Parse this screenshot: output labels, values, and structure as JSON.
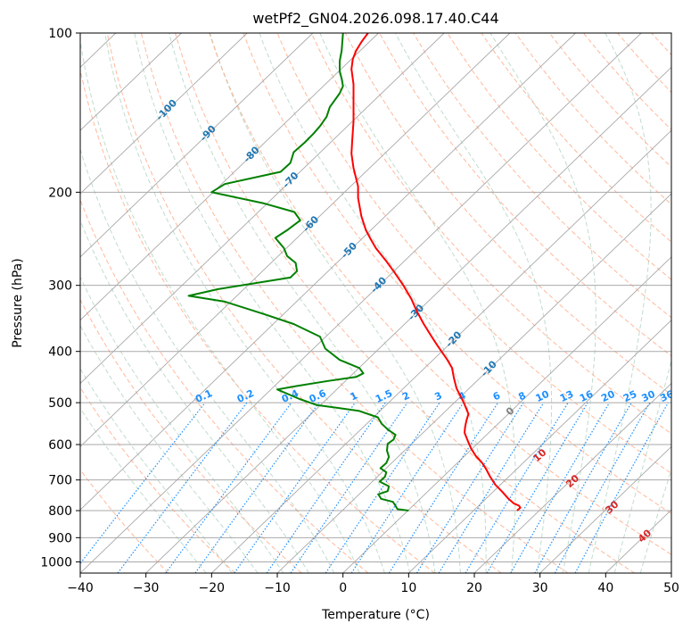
{
  "chart_data": {
    "type": "line",
    "title": "wetPf2_GN04.2026.098.17.40.C44",
    "xlabel": "Temperature (°C)",
    "ylabel": "Pressure (hPa)",
    "xlim": [
      -40,
      50
    ],
    "ylim": [
      1050,
      100
    ],
    "y_scale": "log",
    "x_ticks": [
      -40,
      -30,
      -20,
      -10,
      0,
      10,
      20,
      30,
      40,
      50
    ],
    "y_ticks": [
      100,
      200,
      300,
      400,
      500,
      600,
      700,
      800,
      900,
      1000
    ],
    "grid": true,
    "colors": {
      "temperature": "#ff0000",
      "dewpoint": "#008000",
      "isotherm": "#a9a9a9",
      "dry_adiabat": "#ffa07a",
      "moist_adiabat": "#2e8b57",
      "mixing_ratio": "#1e90ff",
      "dry_adiabat_label": "#d62728",
      "isotherm_label": "#1f77b4"
    },
    "series": [
      {
        "key": "temperature",
        "points": [
          [
            26.5,
            800
          ],
          [
            27.0,
            790
          ],
          [
            26.8,
            783
          ],
          [
            26.0,
            775
          ],
          [
            25.2,
            760
          ],
          [
            24.3,
            738
          ],
          [
            23.2,
            715
          ],
          [
            22.4,
            690
          ],
          [
            21.8,
            668
          ],
          [
            21.2,
            650
          ],
          [
            20.2,
            630
          ],
          [
            19.5,
            610
          ],
          [
            19.0,
            590
          ],
          [
            18.5,
            570
          ],
          [
            18.6,
            555
          ],
          [
            18.8,
            540
          ],
          [
            19.1,
            525
          ],
          [
            18.4,
            500
          ],
          [
            17.3,
            470
          ],
          [
            16.9,
            450
          ],
          [
            16.6,
            430
          ],
          [
            15.9,
            415
          ],
          [
            14.4,
            390
          ],
          [
            13.5,
            375
          ],
          [
            12.3,
            355
          ],
          [
            11.2,
            335
          ],
          [
            10.4,
            318
          ],
          [
            9.2,
            300
          ],
          [
            7.8,
            283
          ],
          [
            6.6,
            270
          ],
          [
            5.0,
            255
          ],
          [
            4.2,
            245
          ],
          [
            3.5,
            236
          ],
          [
            2.8,
            222
          ],
          [
            2.3,
            205
          ],
          [
            2.3,
            195
          ],
          [
            1.6,
            180
          ],
          [
            1.3,
            169
          ],
          [
            1.4,
            160
          ],
          [
            1.6,
            147
          ],
          [
            1.6,
            136
          ],
          [
            1.6,
            125
          ],
          [
            1.3,
            117
          ],
          [
            1.5,
            112
          ],
          [
            2.0,
            108
          ],
          [
            2.8,
            104
          ],
          [
            3.8,
            100
          ]
        ]
      },
      {
        "key": "dewpoint",
        "points": [
          [
            10.0,
            800
          ],
          [
            8.3,
            795
          ],
          [
            7.9,
            780
          ],
          [
            7.6,
            770
          ],
          [
            5.8,
            760
          ],
          [
            5.4,
            745
          ],
          [
            6.8,
            735
          ],
          [
            7.0,
            720
          ],
          [
            5.6,
            705
          ],
          [
            6.4,
            690
          ],
          [
            6.6,
            677
          ],
          [
            5.7,
            665
          ],
          [
            6.6,
            650
          ],
          [
            7.0,
            633
          ],
          [
            6.7,
            616
          ],
          [
            6.8,
            598
          ],
          [
            7.7,
            587
          ],
          [
            8.0,
            575
          ],
          [
            6.9,
            563
          ],
          [
            5.9,
            548
          ],
          [
            5.3,
            533
          ],
          [
            2.4,
            518
          ],
          [
            -4.0,
            505
          ],
          [
            -6.6,
            492
          ],
          [
            -10.0,
            472
          ],
          [
            -7.0,
            465
          ],
          [
            -2.3,
            455
          ],
          [
            2.0,
            447
          ],
          [
            3.1,
            440
          ],
          [
            2.5,
            430
          ],
          [
            -0.5,
            415
          ],
          [
            -2.7,
            395
          ],
          [
            -3.5,
            375
          ],
          [
            -7.5,
            355
          ],
          [
            -12.0,
            340
          ],
          [
            -18.0,
            322
          ],
          [
            -23.5,
            314
          ],
          [
            -19.0,
            305
          ],
          [
            -8.0,
            290
          ],
          [
            -7.0,
            282
          ],
          [
            -7.2,
            272
          ],
          [
            -8.5,
            264
          ],
          [
            -9.0,
            255
          ],
          [
            -10.3,
            244
          ],
          [
            -8.5,
            236
          ],
          [
            -6.5,
            226
          ],
          [
            -7.4,
            218
          ],
          [
            -12.0,
            210
          ],
          [
            -20.0,
            200
          ],
          [
            -18.0,
            193
          ],
          [
            -9.5,
            183
          ],
          [
            -8.0,
            176
          ],
          [
            -7.5,
            168
          ],
          [
            -5.8,
            161
          ],
          [
            -4.5,
            155
          ],
          [
            -3.5,
            150
          ],
          [
            -2.5,
            144
          ],
          [
            -2.0,
            138
          ],
          [
            -0.5,
            130
          ],
          [
            0.0,
            126
          ],
          [
            -0.2,
            122
          ],
          [
            -0.5,
            118
          ],
          [
            -0.5,
            113
          ],
          [
            -0.2,
            108
          ],
          [
            0.0,
            100
          ]
        ]
      }
    ],
    "dry_adiabat_labels": [
      "10",
      "20",
      "30",
      "40"
    ],
    "isotherm_labels": [
      "-100",
      "-90",
      "-80",
      "-70",
      "-60",
      "-50",
      "-40",
      "-30",
      "-20",
      "-10",
      "0"
    ],
    "mixing_ratio_labels": [
      "0.1",
      "0.2",
      "0.4",
      "0.6",
      "1",
      "1.5",
      "2",
      "3",
      "4",
      "6",
      "8",
      "10",
      "13",
      "16",
      "20",
      "25",
      "30",
      "36"
    ]
  }
}
